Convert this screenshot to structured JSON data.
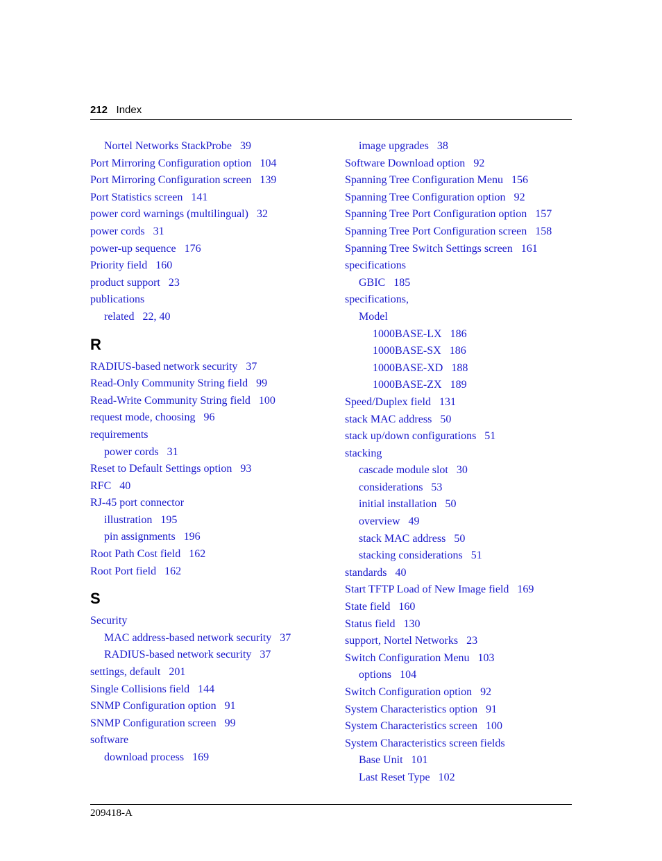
{
  "header": {
    "page_num": "212",
    "title": "Index"
  },
  "footer": {
    "doc": "209418-A"
  },
  "left": {
    "pre": [
      {
        "cls": "sub1",
        "text": "Nortel Networks StackProbe",
        "pg": "39"
      },
      {
        "cls": "",
        "text": "Port Mirroring Configuration option",
        "pg": "104"
      },
      {
        "cls": "",
        "text": "Port Mirroring Configuration screen",
        "pg": "139"
      },
      {
        "cls": "",
        "text": "Port Statistics screen",
        "pg": "141"
      },
      {
        "cls": "",
        "text": "power cord warnings (multilingual)",
        "pg": "32"
      },
      {
        "cls": "",
        "text": "power cords",
        "pg": "31"
      },
      {
        "cls": "",
        "text": "power-up sequence",
        "pg": "176"
      },
      {
        "cls": "",
        "text": "Priority field",
        "pg": "160"
      },
      {
        "cls": "",
        "text": "product support",
        "pg": "23"
      },
      {
        "cls": "",
        "text": "publications",
        "pg": ""
      },
      {
        "cls": "sub1",
        "text": "related",
        "pg": "22, 40"
      }
    ],
    "R": [
      {
        "cls": "",
        "text": "RADIUS-based network security",
        "pg": "37"
      },
      {
        "cls": "",
        "text": "Read-Only Community String field",
        "pg": "99"
      },
      {
        "cls": "",
        "text": "Read-Write Community String field",
        "pg": "100"
      },
      {
        "cls": "",
        "text": "request mode, choosing",
        "pg": "96"
      },
      {
        "cls": "",
        "text": "requirements",
        "pg": ""
      },
      {
        "cls": "sub1",
        "text": "power cords",
        "pg": "31"
      },
      {
        "cls": "",
        "text": "Reset to Default Settings option",
        "pg": "93"
      },
      {
        "cls": "",
        "text": "RFC",
        "pg": "40"
      },
      {
        "cls": "",
        "text": "RJ-45 port connector",
        "pg": ""
      },
      {
        "cls": "sub1",
        "text": "illustration",
        "pg": "195"
      },
      {
        "cls": "sub1",
        "text": "pin assignments",
        "pg": "196"
      },
      {
        "cls": "",
        "text": "Root Path Cost field",
        "pg": "162"
      },
      {
        "cls": "",
        "text": "Root Port field",
        "pg": "162"
      }
    ],
    "S": [
      {
        "cls": "",
        "text": "Security",
        "pg": ""
      },
      {
        "cls": "sub1",
        "text": "MAC address-based network security",
        "pg": "37"
      },
      {
        "cls": "sub1",
        "text": "RADIUS-based network security",
        "pg": "37"
      },
      {
        "cls": "",
        "text": "settings, default",
        "pg": "201"
      },
      {
        "cls": "",
        "text": "Single Collisions field",
        "pg": "144"
      },
      {
        "cls": "",
        "text": "SNMP Configuration option",
        "pg": "91"
      },
      {
        "cls": "",
        "text": "SNMP Configuration screen",
        "pg": "99"
      },
      {
        "cls": "",
        "text": "software",
        "pg": ""
      },
      {
        "cls": "sub1",
        "text": "download process",
        "pg": "169"
      }
    ]
  },
  "right": {
    "pre": [
      {
        "cls": "sub1",
        "text": "image upgrades",
        "pg": "38"
      },
      {
        "cls": "",
        "text": "Software Download option",
        "pg": "92"
      },
      {
        "cls": "",
        "text": "Spanning Tree Configuration Menu",
        "pg": "156"
      },
      {
        "cls": "",
        "text": "Spanning Tree Configuration option",
        "pg": "92"
      },
      {
        "cls": "",
        "text": "Spanning Tree Port Configuration option",
        "pg": "157"
      },
      {
        "cls": "",
        "text": "Spanning Tree Port Configuration screen",
        "pg": "158"
      },
      {
        "cls": "",
        "text": "Spanning Tree Switch Settings screen",
        "pg": "161"
      },
      {
        "cls": "",
        "text": "specifications",
        "pg": ""
      },
      {
        "cls": "sub1",
        "text": "GBIC",
        "pg": "185"
      },
      {
        "cls": "",
        "text": "specifications,",
        "pg": ""
      },
      {
        "cls": "sub1",
        "text": "Model",
        "pg": ""
      },
      {
        "cls": "sub2",
        "text": "1000BASE-LX",
        "pg": "186"
      },
      {
        "cls": "sub2",
        "text": "1000BASE-SX",
        "pg": "186"
      },
      {
        "cls": "sub2",
        "text": "1000BASE-XD",
        "pg": "188"
      },
      {
        "cls": "sub2",
        "text": "1000BASE-ZX",
        "pg": "189"
      },
      {
        "cls": "",
        "text": "Speed/Duplex field",
        "pg": "131"
      },
      {
        "cls": "",
        "text": "stack MAC address",
        "pg": "50"
      },
      {
        "cls": "",
        "text": "stack up/down configurations",
        "pg": "51"
      },
      {
        "cls": "",
        "text": "stacking",
        "pg": ""
      },
      {
        "cls": "sub1",
        "text": "cascade module slot",
        "pg": "30"
      },
      {
        "cls": "sub1",
        "text": "considerations",
        "pg": "53"
      },
      {
        "cls": "sub1",
        "text": "initial installation",
        "pg": "50"
      },
      {
        "cls": "sub1",
        "text": "overview",
        "pg": "49"
      },
      {
        "cls": "sub1",
        "text": "stack MAC address",
        "pg": "50"
      },
      {
        "cls": "sub1",
        "text": "stacking considerations",
        "pg": "51"
      },
      {
        "cls": "",
        "text": "standards",
        "pg": "40"
      },
      {
        "cls": "",
        "text": "Start TFTP Load of New Image field",
        "pg": "169"
      },
      {
        "cls": "",
        "text": "State field",
        "pg": "160"
      },
      {
        "cls": "",
        "text": "Status field",
        "pg": "130"
      },
      {
        "cls": "",
        "text": "support, Nortel Networks",
        "pg": "23"
      },
      {
        "cls": "",
        "text": "Switch Configuration Menu",
        "pg": "103"
      },
      {
        "cls": "sub1",
        "text": "options",
        "pg": "104"
      },
      {
        "cls": "",
        "text": "Switch Configuration option",
        "pg": "92"
      },
      {
        "cls": "",
        "text": "System Characteristics option",
        "pg": "91"
      },
      {
        "cls": "",
        "text": "System Characteristics screen",
        "pg": "100"
      },
      {
        "cls": "",
        "text": "System Characteristics screen fields",
        "pg": ""
      },
      {
        "cls": "sub1",
        "text": "Base Unit",
        "pg": "101"
      },
      {
        "cls": "sub1",
        "text": "Last Reset Type",
        "pg": "102"
      }
    ]
  },
  "letters": {
    "R": "R",
    "S": "S"
  }
}
